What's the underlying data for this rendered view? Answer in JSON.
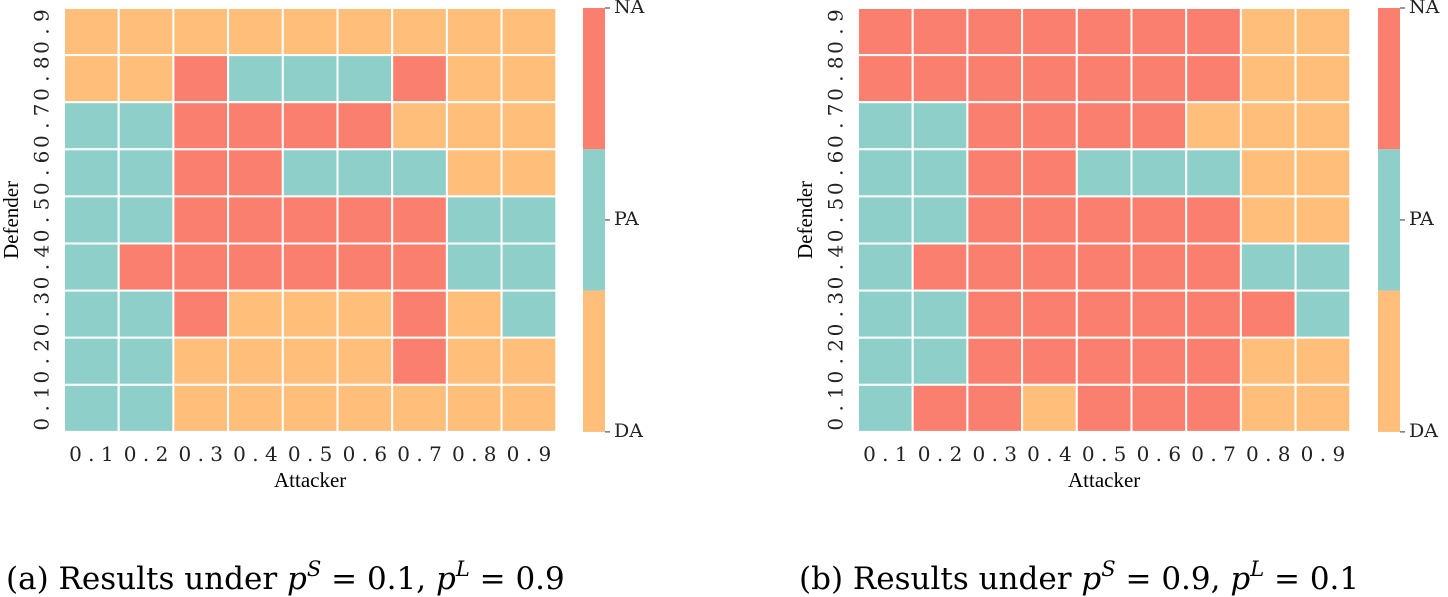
{
  "categories": {
    "NA": {
      "label": "NA",
      "color": "#FA7F6F"
    },
    "PA": {
      "label": "PA",
      "color": "#8ECFC9"
    },
    "DA": {
      "label": "DA",
      "color": "#FFBE7A"
    }
  },
  "chart_data": [
    {
      "type": "heatmap",
      "xlabel": "Attacker",
      "ylabel": "Defender",
      "x": [
        "0.1",
        "0.2",
        "0.3",
        "0.4",
        "0.5",
        "0.6",
        "0.7",
        "0.8",
        "0.9"
      ],
      "y": [
        "0.9",
        "0.8",
        "0.7",
        "0.6",
        "0.5",
        "0.4",
        "0.3",
        "0.2",
        "0.1"
      ],
      "colorbar": [
        "NA",
        "PA",
        "DA"
      ],
      "caption": {
        "prefix": "(a) Results under ",
        "pS": "0.1",
        "pL": "0.9"
      },
      "cells": [
        [
          "DA",
          "DA",
          "DA",
          "DA",
          "DA",
          "DA",
          "DA",
          "DA",
          "DA"
        ],
        [
          "DA",
          "DA",
          "NA",
          "PA",
          "PA",
          "PA",
          "NA",
          "DA",
          "DA"
        ],
        [
          "PA",
          "PA",
          "NA",
          "NA",
          "NA",
          "NA",
          "DA",
          "DA",
          "DA"
        ],
        [
          "PA",
          "PA",
          "NA",
          "NA",
          "PA",
          "PA",
          "PA",
          "DA",
          "DA"
        ],
        [
          "PA",
          "PA",
          "NA",
          "NA",
          "NA",
          "NA",
          "NA",
          "PA",
          "PA"
        ],
        [
          "PA",
          "NA",
          "NA",
          "NA",
          "NA",
          "NA",
          "NA",
          "PA",
          "PA"
        ],
        [
          "PA",
          "PA",
          "NA",
          "DA",
          "DA",
          "DA",
          "NA",
          "DA",
          "PA"
        ],
        [
          "PA",
          "PA",
          "DA",
          "DA",
          "DA",
          "DA",
          "NA",
          "DA",
          "DA"
        ],
        [
          "PA",
          "PA",
          "DA",
          "DA",
          "DA",
          "DA",
          "DA",
          "DA",
          "DA"
        ]
      ]
    },
    {
      "type": "heatmap",
      "xlabel": "Attacker",
      "ylabel": "Defender",
      "x": [
        "0.1",
        "0.2",
        "0.3",
        "0.4",
        "0.5",
        "0.6",
        "0.7",
        "0.8",
        "0.9"
      ],
      "y": [
        "0.9",
        "0.8",
        "0.7",
        "0.6",
        "0.5",
        "0.4",
        "0.3",
        "0.2",
        "0.1"
      ],
      "colorbar": [
        "NA",
        "PA",
        "DA"
      ],
      "caption": {
        "prefix": "(b) Results under ",
        "pS": "0.9",
        "pL": "0.1"
      },
      "cells": [
        [
          "NA",
          "NA",
          "NA",
          "NA",
          "NA",
          "NA",
          "NA",
          "DA",
          "DA"
        ],
        [
          "NA",
          "NA",
          "NA",
          "NA",
          "NA",
          "NA",
          "NA",
          "DA",
          "DA"
        ],
        [
          "PA",
          "PA",
          "NA",
          "NA",
          "NA",
          "NA",
          "DA",
          "DA",
          "DA"
        ],
        [
          "PA",
          "PA",
          "NA",
          "NA",
          "PA",
          "PA",
          "PA",
          "DA",
          "DA"
        ],
        [
          "PA",
          "PA",
          "NA",
          "NA",
          "NA",
          "NA",
          "NA",
          "DA",
          "DA"
        ],
        [
          "PA",
          "NA",
          "NA",
          "NA",
          "NA",
          "NA",
          "NA",
          "PA",
          "PA"
        ],
        [
          "PA",
          "PA",
          "NA",
          "NA",
          "NA",
          "NA",
          "NA",
          "NA",
          "PA"
        ],
        [
          "PA",
          "PA",
          "NA",
          "NA",
          "NA",
          "NA",
          "NA",
          "DA",
          "DA"
        ],
        [
          "PA",
          "NA",
          "NA",
          "DA",
          "NA",
          "NA",
          "NA",
          "DA",
          "DA"
        ]
      ]
    }
  ]
}
